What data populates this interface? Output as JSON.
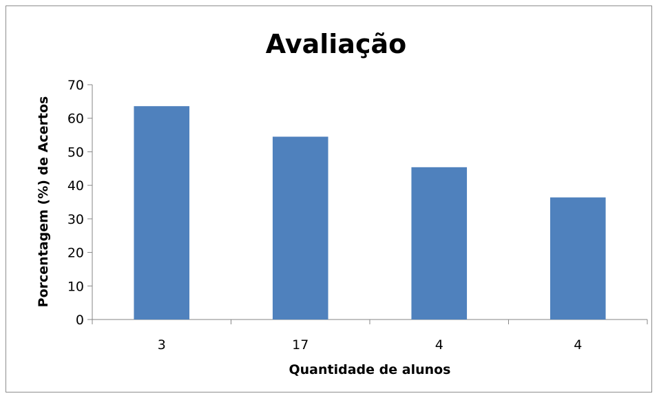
{
  "chart_data": {
    "type": "bar",
    "title": "Avaliação",
    "xlabel": "Quantidade de alunos",
    "ylabel": "Porcentagem (%) de Acertos",
    "categories": [
      "3",
      "17",
      "4",
      "4"
    ],
    "values": [
      63.6,
      54.5,
      45.4,
      36.4
    ],
    "ylim": [
      0,
      70
    ],
    "yticks": [
      0,
      10,
      20,
      30,
      40,
      50,
      60,
      70
    ],
    "grid": false,
    "legend": "none",
    "bar_color": "#4f81bd"
  }
}
